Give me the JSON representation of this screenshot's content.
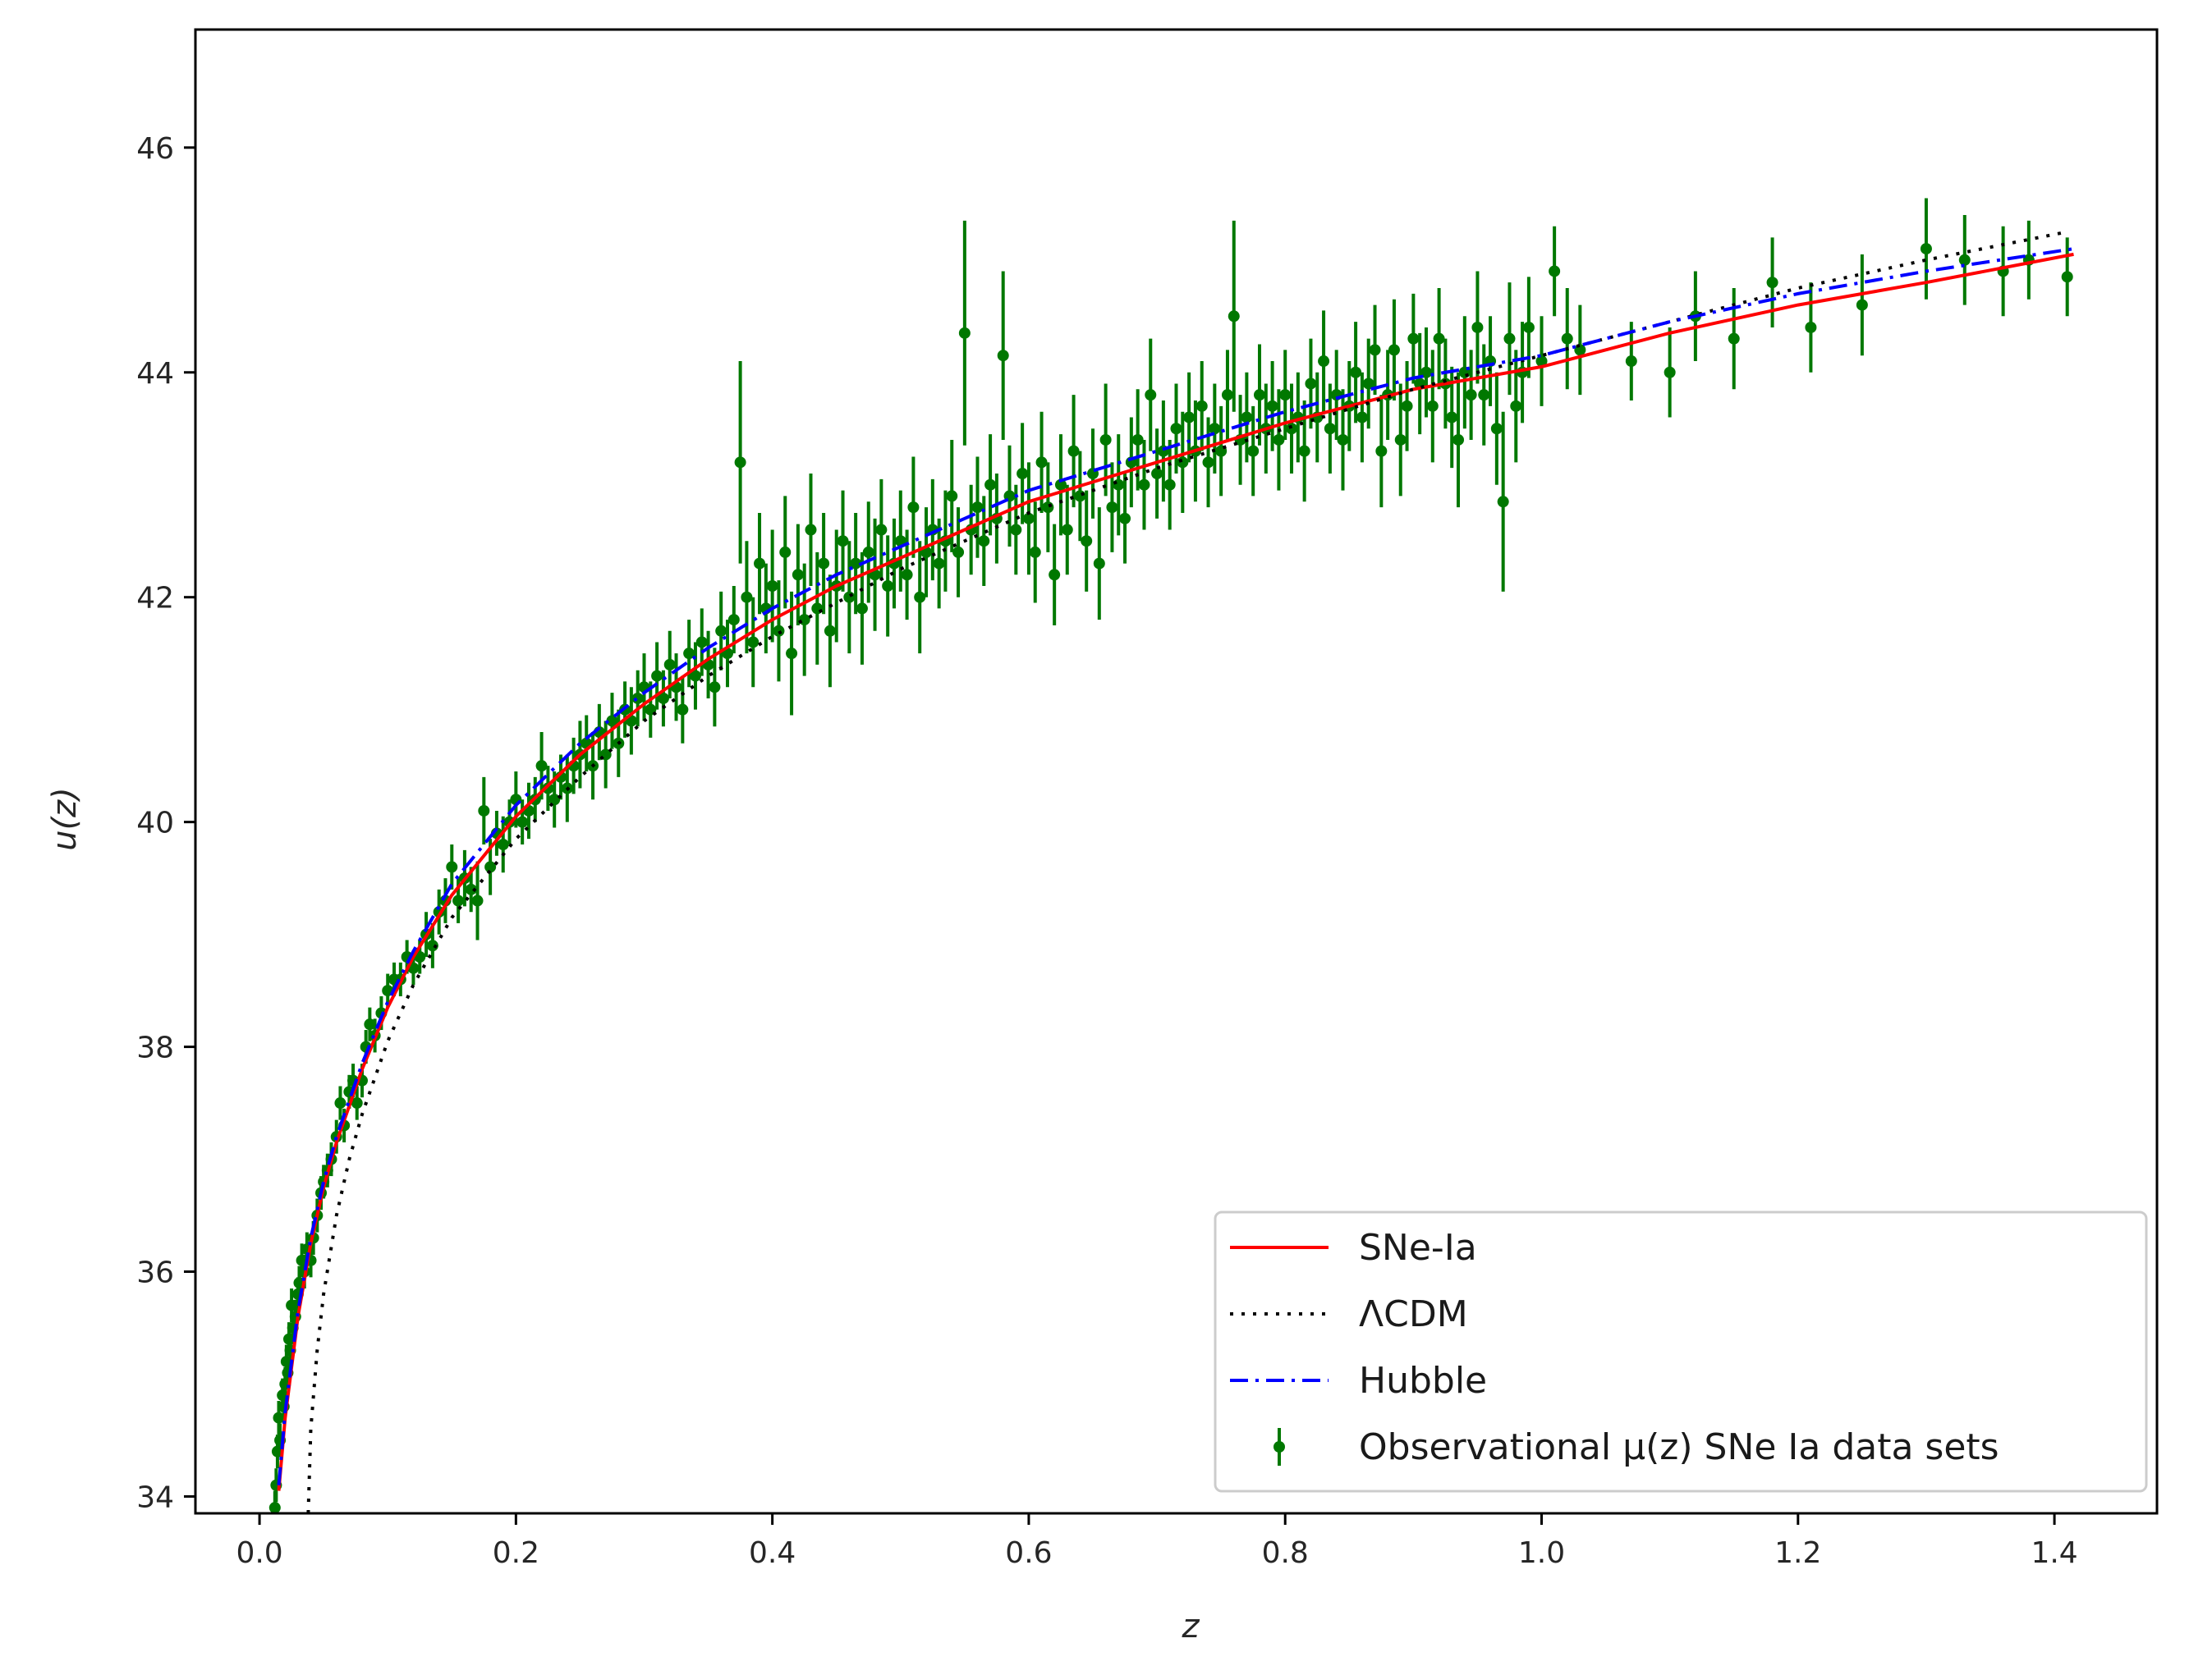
{
  "chart_data": {
    "type": "scatter",
    "xlabel": "z",
    "ylabel": "u(z)",
    "xlim": [
      -0.05,
      1.48
    ],
    "ylim": [
      33.85,
      47.05
    ],
    "xticks": [
      0.0,
      0.2,
      0.4,
      0.6,
      0.8,
      1.0,
      1.2,
      1.4
    ],
    "xtick_labels": [
      "0.0",
      "0.2",
      "0.4",
      "0.6",
      "0.8",
      "1.0",
      "1.2",
      "1.4"
    ],
    "yticks": [
      34,
      36,
      38,
      40,
      42,
      44,
      46
    ],
    "ytick_labels": [
      "34",
      "36",
      "38",
      "40",
      "42",
      "44",
      "46"
    ],
    "grid": false,
    "legend_position": "lower-right",
    "colors": {
      "sne": "#ff0000",
      "lcdm": "#000000",
      "hubble": "#0000ff",
      "observational": "#007800"
    },
    "lines": [
      {
        "name": "SNe-Ia",
        "style": "solid",
        "x": [
          0.015,
          0.02,
          0.03,
          0.04,
          0.05,
          0.06,
          0.08,
          0.1,
          0.12,
          0.15,
          0.2,
          0.25,
          0.3,
          0.35,
          0.4,
          0.45,
          0.5,
          0.55,
          0.6,
          0.7,
          0.8,
          0.9,
          1.0,
          1.1,
          1.2,
          1.3,
          1.415
        ],
        "y": [
          34.05,
          34.7,
          35.6,
          36.25,
          36.75,
          37.15,
          37.8,
          38.35,
          38.8,
          39.35,
          40.05,
          40.6,
          41.05,
          41.45,
          41.8,
          42.1,
          42.35,
          42.6,
          42.85,
          43.2,
          43.55,
          43.85,
          44.05,
          44.35,
          44.6,
          44.8,
          45.05
        ]
      },
      {
        "name": "ΛCDM",
        "style": "dotted",
        "x": [
          0.038,
          0.04,
          0.045,
          0.05,
          0.06,
          0.07,
          0.08,
          0.1,
          0.12,
          0.15,
          0.2,
          0.25,
          0.3,
          0.35,
          0.4,
          0.45,
          0.5,
          0.55,
          0.6,
          0.7,
          0.8,
          0.9,
          1.0,
          1.1,
          1.2,
          1.3,
          1.41
        ],
        "y": [
          33.85,
          34.6,
          35.3,
          35.8,
          36.5,
          37.0,
          37.4,
          38.05,
          38.55,
          39.15,
          39.85,
          40.4,
          40.9,
          41.3,
          41.65,
          41.95,
          42.25,
          42.5,
          42.75,
          43.15,
          43.5,
          43.85,
          44.15,
          44.45,
          44.75,
          45.0,
          45.25
        ]
      },
      {
        "name": "Hubble",
        "style": "dashdot",
        "x": [
          0.015,
          0.02,
          0.03,
          0.04,
          0.05,
          0.06,
          0.08,
          0.1,
          0.12,
          0.15,
          0.2,
          0.25,
          0.3,
          0.35,
          0.4,
          0.45,
          0.5,
          0.55,
          0.6,
          0.7,
          0.8,
          0.9,
          1.0,
          1.1,
          1.2,
          1.3,
          1.415
        ],
        "y": [
          34.1,
          34.75,
          35.65,
          36.3,
          36.8,
          37.2,
          37.85,
          38.4,
          38.85,
          39.45,
          40.15,
          40.7,
          41.15,
          41.55,
          41.9,
          42.2,
          42.45,
          42.7,
          42.95,
          43.3,
          43.65,
          43.95,
          44.15,
          44.45,
          44.7,
          44.9,
          45.1
        ]
      }
    ],
    "observations": {
      "name": "Observational μ(z) SNe Ia data sets",
      "points": [
        [
          0.012,
          33.9,
          0.15
        ],
        [
          0.013,
          34.1,
          0.15
        ],
        [
          0.014,
          34.4,
          0.15
        ],
        [
          0.015,
          34.7,
          0.15
        ],
        [
          0.016,
          34.5,
          0.15
        ],
        [
          0.018,
          34.9,
          0.15
        ],
        [
          0.019,
          34.8,
          0.15
        ],
        [
          0.02,
          35.0,
          0.15
        ],
        [
          0.021,
          35.2,
          0.15
        ],
        [
          0.022,
          35.1,
          0.15
        ],
        [
          0.023,
          35.4,
          0.15
        ],
        [
          0.024,
          35.3,
          0.15
        ],
        [
          0.025,
          35.7,
          0.15
        ],
        [
          0.026,
          35.5,
          0.15
        ],
        [
          0.028,
          35.6,
          0.15
        ],
        [
          0.03,
          35.8,
          0.15
        ],
        [
          0.031,
          35.9,
          0.15
        ],
        [
          0.033,
          36.1,
          0.15
        ],
        [
          0.035,
          36.0,
          0.15
        ],
        [
          0.037,
          36.2,
          0.15
        ],
        [
          0.04,
          36.1,
          0.15
        ],
        [
          0.042,
          36.3,
          0.15
        ],
        [
          0.045,
          36.5,
          0.15
        ],
        [
          0.048,
          36.7,
          0.15
        ],
        [
          0.05,
          36.8,
          0.15
        ],
        [
          0.053,
          36.9,
          0.15
        ],
        [
          0.056,
          37.0,
          0.15
        ],
        [
          0.06,
          37.2,
          0.15
        ],
        [
          0.063,
          37.5,
          0.15
        ],
        [
          0.066,
          37.3,
          0.15
        ],
        [
          0.07,
          37.6,
          0.15
        ],
        [
          0.073,
          37.7,
          0.15
        ],
        [
          0.076,
          37.5,
          0.15
        ],
        [
          0.08,
          37.7,
          0.15
        ],
        [
          0.083,
          38.0,
          0.15
        ],
        [
          0.086,
          38.2,
          0.15
        ],
        [
          0.09,
          38.1,
          0.15
        ],
        [
          0.095,
          38.3,
          0.15
        ],
        [
          0.1,
          38.5,
          0.15
        ],
        [
          0.105,
          38.6,
          0.15
        ],
        [
          0.11,
          38.6,
          0.15
        ],
        [
          0.115,
          38.8,
          0.15
        ],
        [
          0.12,
          38.7,
          0.15
        ],
        [
          0.125,
          38.8,
          0.15
        ],
        [
          0.13,
          39.0,
          0.2
        ],
        [
          0.135,
          38.9,
          0.2
        ],
        [
          0.14,
          39.2,
          0.2
        ],
        [
          0.145,
          39.3,
          0.2
        ],
        [
          0.15,
          39.6,
          0.2
        ],
        [
          0.155,
          39.3,
          0.2
        ],
        [
          0.16,
          39.5,
          0.25
        ],
        [
          0.165,
          39.4,
          0.2
        ],
        [
          0.17,
          39.3,
          0.35
        ],
        [
          0.175,
          40.1,
          0.3
        ],
        [
          0.18,
          39.6,
          0.25
        ],
        [
          0.185,
          39.9,
          0.2
        ],
        [
          0.19,
          39.8,
          0.25
        ],
        [
          0.195,
          40.0,
          0.2
        ],
        [
          0.2,
          40.2,
          0.25
        ],
        [
          0.205,
          40.0,
          0.2
        ],
        [
          0.21,
          40.1,
          0.25
        ],
        [
          0.215,
          40.2,
          0.2
        ],
        [
          0.22,
          40.5,
          0.3
        ],
        [
          0.225,
          40.3,
          0.2
        ],
        [
          0.23,
          40.2,
          0.25
        ],
        [
          0.235,
          40.4,
          0.2
        ],
        [
          0.24,
          40.3,
          0.3
        ],
        [
          0.245,
          40.5,
          0.25
        ],
        [
          0.25,
          40.6,
          0.3
        ],
        [
          0.255,
          40.7,
          0.25
        ],
        [
          0.26,
          40.5,
          0.3
        ],
        [
          0.265,
          40.8,
          0.25
        ],
        [
          0.27,
          40.6,
          0.3
        ],
        [
          0.275,
          40.9,
          0.25
        ],
        [
          0.28,
          40.7,
          0.3
        ],
        [
          0.285,
          41.0,
          0.25
        ],
        [
          0.29,
          40.9,
          0.3
        ],
        [
          0.295,
          41.1,
          0.25
        ],
        [
          0.3,
          41.2,
          0.3
        ],
        [
          0.305,
          41.0,
          0.25
        ],
        [
          0.31,
          41.3,
          0.3
        ],
        [
          0.315,
          41.1,
          0.25
        ],
        [
          0.32,
          41.4,
          0.3
        ],
        [
          0.325,
          41.2,
          0.3
        ],
        [
          0.33,
          41.0,
          0.3
        ],
        [
          0.335,
          41.5,
          0.3
        ],
        [
          0.34,
          41.3,
          0.3
        ],
        [
          0.345,
          41.6,
          0.3
        ],
        [
          0.35,
          41.4,
          0.3
        ],
        [
          0.355,
          41.2,
          0.35
        ],
        [
          0.36,
          41.7,
          0.35
        ],
        [
          0.365,
          41.5,
          0.3
        ],
        [
          0.37,
          41.8,
          0.3
        ],
        [
          0.375,
          43.2,
          0.9
        ],
        [
          0.38,
          42.0,
          0.5
        ],
        [
          0.385,
          41.6,
          0.4
        ],
        [
          0.39,
          42.3,
          0.45
        ],
        [
          0.395,
          41.9,
          0.4
        ],
        [
          0.4,
          42.1,
          0.5
        ],
        [
          0.405,
          41.7,
          0.45
        ],
        [
          0.41,
          42.4,
          0.5
        ],
        [
          0.415,
          41.5,
          0.55
        ],
        [
          0.42,
          42.2,
          0.45
        ],
        [
          0.425,
          41.8,
          0.5
        ],
        [
          0.43,
          42.6,
          0.5
        ],
        [
          0.435,
          41.9,
          0.5
        ],
        [
          0.44,
          42.3,
          0.45
        ],
        [
          0.445,
          41.7,
          0.5
        ],
        [
          0.45,
          42.1,
          0.5
        ],
        [
          0.455,
          42.5,
          0.45
        ],
        [
          0.46,
          42.0,
          0.5
        ],
        [
          0.465,
          42.3,
          0.45
        ],
        [
          0.47,
          41.9,
          0.5
        ],
        [
          0.475,
          42.4,
          0.45
        ],
        [
          0.48,
          42.2,
          0.5
        ],
        [
          0.485,
          42.6,
          0.45
        ],
        [
          0.49,
          42.1,
          0.45
        ],
        [
          0.495,
          42.3,
          0.4
        ],
        [
          0.5,
          42.5,
          0.45
        ],
        [
          0.505,
          42.2,
          0.4
        ],
        [
          0.51,
          42.8,
          0.45
        ],
        [
          0.515,
          42.0,
          0.5
        ],
        [
          0.52,
          42.4,
          0.4
        ],
        [
          0.525,
          42.6,
          0.45
        ],
        [
          0.53,
          42.3,
          0.4
        ],
        [
          0.535,
          42.5,
          0.45
        ],
        [
          0.54,
          42.9,
          0.5
        ],
        [
          0.545,
          42.4,
          0.4
        ],
        [
          0.55,
          44.35,
          1.0
        ],
        [
          0.555,
          42.6,
          0.4
        ],
        [
          0.56,
          42.8,
          0.45
        ],
        [
          0.565,
          42.5,
          0.4
        ],
        [
          0.57,
          43.0,
          0.45
        ],
        [
          0.575,
          42.7,
          0.4
        ],
        [
          0.58,
          44.15,
          0.75
        ],
        [
          0.585,
          42.9,
          0.45
        ],
        [
          0.59,
          42.6,
          0.4
        ],
        [
          0.595,
          43.1,
          0.45
        ],
        [
          0.6,
          42.7,
          0.5
        ],
        [
          0.605,
          42.4,
          0.45
        ],
        [
          0.61,
          43.2,
          0.45
        ],
        [
          0.615,
          42.8,
          0.4
        ],
        [
          0.62,
          42.2,
          0.45
        ],
        [
          0.625,
          43.0,
          0.45
        ],
        [
          0.63,
          42.6,
          0.4
        ],
        [
          0.635,
          43.3,
          0.5
        ],
        [
          0.64,
          42.9,
          0.4
        ],
        [
          0.645,
          42.5,
          0.45
        ],
        [
          0.65,
          43.1,
          0.4
        ],
        [
          0.655,
          42.3,
          0.5
        ],
        [
          0.66,
          43.4,
          0.5
        ],
        [
          0.665,
          42.8,
          0.4
        ],
        [
          0.67,
          43.0,
          0.45
        ],
        [
          0.675,
          42.7,
          0.4
        ],
        [
          0.68,
          43.2,
          0.4
        ],
        [
          0.685,
          43.4,
          0.45
        ],
        [
          0.69,
          43.0,
          0.4
        ],
        [
          0.695,
          43.8,
          0.5
        ],
        [
          0.7,
          43.1,
          0.4
        ],
        [
          0.705,
          43.3,
          0.45
        ],
        [
          0.71,
          43.0,
          0.4
        ],
        [
          0.715,
          43.5,
          0.4
        ],
        [
          0.72,
          43.2,
          0.45
        ],
        [
          0.725,
          43.6,
          0.4
        ],
        [
          0.73,
          43.3,
          0.45
        ],
        [
          0.735,
          43.7,
          0.4
        ],
        [
          0.74,
          43.2,
          0.4
        ],
        [
          0.745,
          43.5,
          0.4
        ],
        [
          0.75,
          43.3,
          0.4
        ],
        [
          0.755,
          43.8,
          0.4
        ],
        [
          0.76,
          44.5,
          0.85
        ],
        [
          0.765,
          43.4,
          0.4
        ],
        [
          0.77,
          43.6,
          0.4
        ],
        [
          0.775,
          43.3,
          0.4
        ],
        [
          0.78,
          43.8,
          0.45
        ],
        [
          0.785,
          43.5,
          0.4
        ],
        [
          0.79,
          43.7,
          0.4
        ],
        [
          0.795,
          43.4,
          0.45
        ],
        [
          0.8,
          43.8,
          0.4
        ],
        [
          0.805,
          43.5,
          0.4
        ],
        [
          0.81,
          43.6,
          0.4
        ],
        [
          0.815,
          43.3,
          0.45
        ],
        [
          0.82,
          43.9,
          0.4
        ],
        [
          0.825,
          43.6,
          0.4
        ],
        [
          0.83,
          44.1,
          0.45
        ],
        [
          0.835,
          43.5,
          0.4
        ],
        [
          0.84,
          43.8,
          0.4
        ],
        [
          0.845,
          43.4,
          0.45
        ],
        [
          0.85,
          43.7,
          0.4
        ],
        [
          0.855,
          44.0,
          0.45
        ],
        [
          0.86,
          43.6,
          0.4
        ],
        [
          0.865,
          43.9,
          0.4
        ],
        [
          0.87,
          44.2,
          0.4
        ],
        [
          0.875,
          43.3,
          0.5
        ],
        [
          0.88,
          43.8,
          0.4
        ],
        [
          0.885,
          44.2,
          0.45
        ],
        [
          0.89,
          43.4,
          0.5
        ],
        [
          0.895,
          43.7,
          0.4
        ],
        [
          0.9,
          44.3,
          0.4
        ],
        [
          0.905,
          43.9,
          0.45
        ],
        [
          0.91,
          44.0,
          0.4
        ],
        [
          0.915,
          43.7,
          0.5
        ],
        [
          0.92,
          44.3,
          0.45
        ],
        [
          0.925,
          43.9,
          0.4
        ],
        [
          0.93,
          43.6,
          0.45
        ],
        [
          0.935,
          43.4,
          0.6
        ],
        [
          0.94,
          44.0,
          0.5
        ],
        [
          0.945,
          43.8,
          0.4
        ],
        [
          0.95,
          44.4,
          0.5
        ],
        [
          0.955,
          43.8,
          0.45
        ],
        [
          0.96,
          44.1,
          0.4
        ],
        [
          0.965,
          43.5,
          0.5
        ],
        [
          0.97,
          42.85,
          0.8
        ],
        [
          0.975,
          44.3,
          0.5
        ],
        [
          0.98,
          43.7,
          0.5
        ],
        [
          0.985,
          44.0,
          0.45
        ],
        [
          0.99,
          44.4,
          0.45
        ],
        [
          1.0,
          44.1,
          0.4
        ],
        [
          1.01,
          44.9,
          0.4
        ],
        [
          1.02,
          44.3,
          0.45
        ],
        [
          1.03,
          44.2,
          0.4
        ],
        [
          1.07,
          44.1,
          0.35
        ],
        [
          1.1,
          44.0,
          0.4
        ],
        [
          1.12,
          44.5,
          0.4
        ],
        [
          1.15,
          44.3,
          0.45
        ],
        [
          1.18,
          44.8,
          0.4
        ],
        [
          1.21,
          44.4,
          0.4
        ],
        [
          1.25,
          44.6,
          0.45
        ],
        [
          1.3,
          45.1,
          0.45
        ],
        [
          1.33,
          45.0,
          0.4
        ],
        [
          1.36,
          44.9,
          0.4
        ],
        [
          1.38,
          45.0,
          0.35
        ],
        [
          1.41,
          44.85,
          0.35
        ]
      ]
    }
  }
}
